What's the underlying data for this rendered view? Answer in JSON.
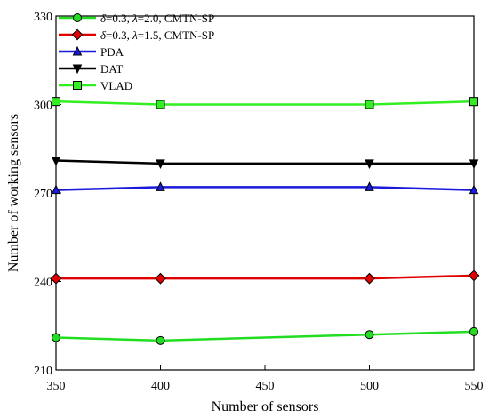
{
  "chart_data": {
    "type": "line",
    "xlabel": "Number of sensors",
    "ylabel": "Number of working sensors",
    "x": [
      350,
      400,
      500,
      550
    ],
    "xlim": [
      350,
      550
    ],
    "ylim": [
      210,
      330
    ],
    "xticks": [
      "350",
      "400",
      "450",
      "500",
      "550"
    ],
    "yticks": [
      "210",
      "240",
      "270",
      "300",
      "330"
    ],
    "grid": false,
    "legend_position": "top-left",
    "series": [
      {
        "name": "δ=0.3, λ=2.0, CMTN-SP",
        "legend_parts": [
          "δ",
          "=0.3, ",
          "λ",
          "=2.0, CMTN-SP"
        ],
        "values": [
          221,
          220,
          222,
          223
        ],
        "color": "#22dd22",
        "marker": "circle"
      },
      {
        "name": "δ=0.3, λ=1.5, CMTN-SP",
        "legend_parts": [
          "δ",
          "=0.3, ",
          "λ",
          "=1.5, CMTN-SP"
        ],
        "values": [
          241,
          241,
          241,
          242
        ],
        "color": "#e00000",
        "marker": "diamond"
      },
      {
        "name": "PDA",
        "legend_parts": [
          "",
          "PDA",
          "",
          ""
        ],
        "values": [
          271,
          272,
          272,
          271
        ],
        "color": "#1a1adc",
        "marker": "triangle-up"
      },
      {
        "name": "DAT",
        "legend_parts": [
          "",
          "DAT",
          "",
          ""
        ],
        "values": [
          281,
          280,
          280,
          280
        ],
        "color": "#000000",
        "marker": "triangle-down"
      },
      {
        "name": "VLAD",
        "legend_parts": [
          "",
          "VLAD",
          "",
          ""
        ],
        "values": [
          301,
          300,
          300,
          301
        ],
        "color": "#33ee22",
        "marker": "square"
      }
    ]
  }
}
